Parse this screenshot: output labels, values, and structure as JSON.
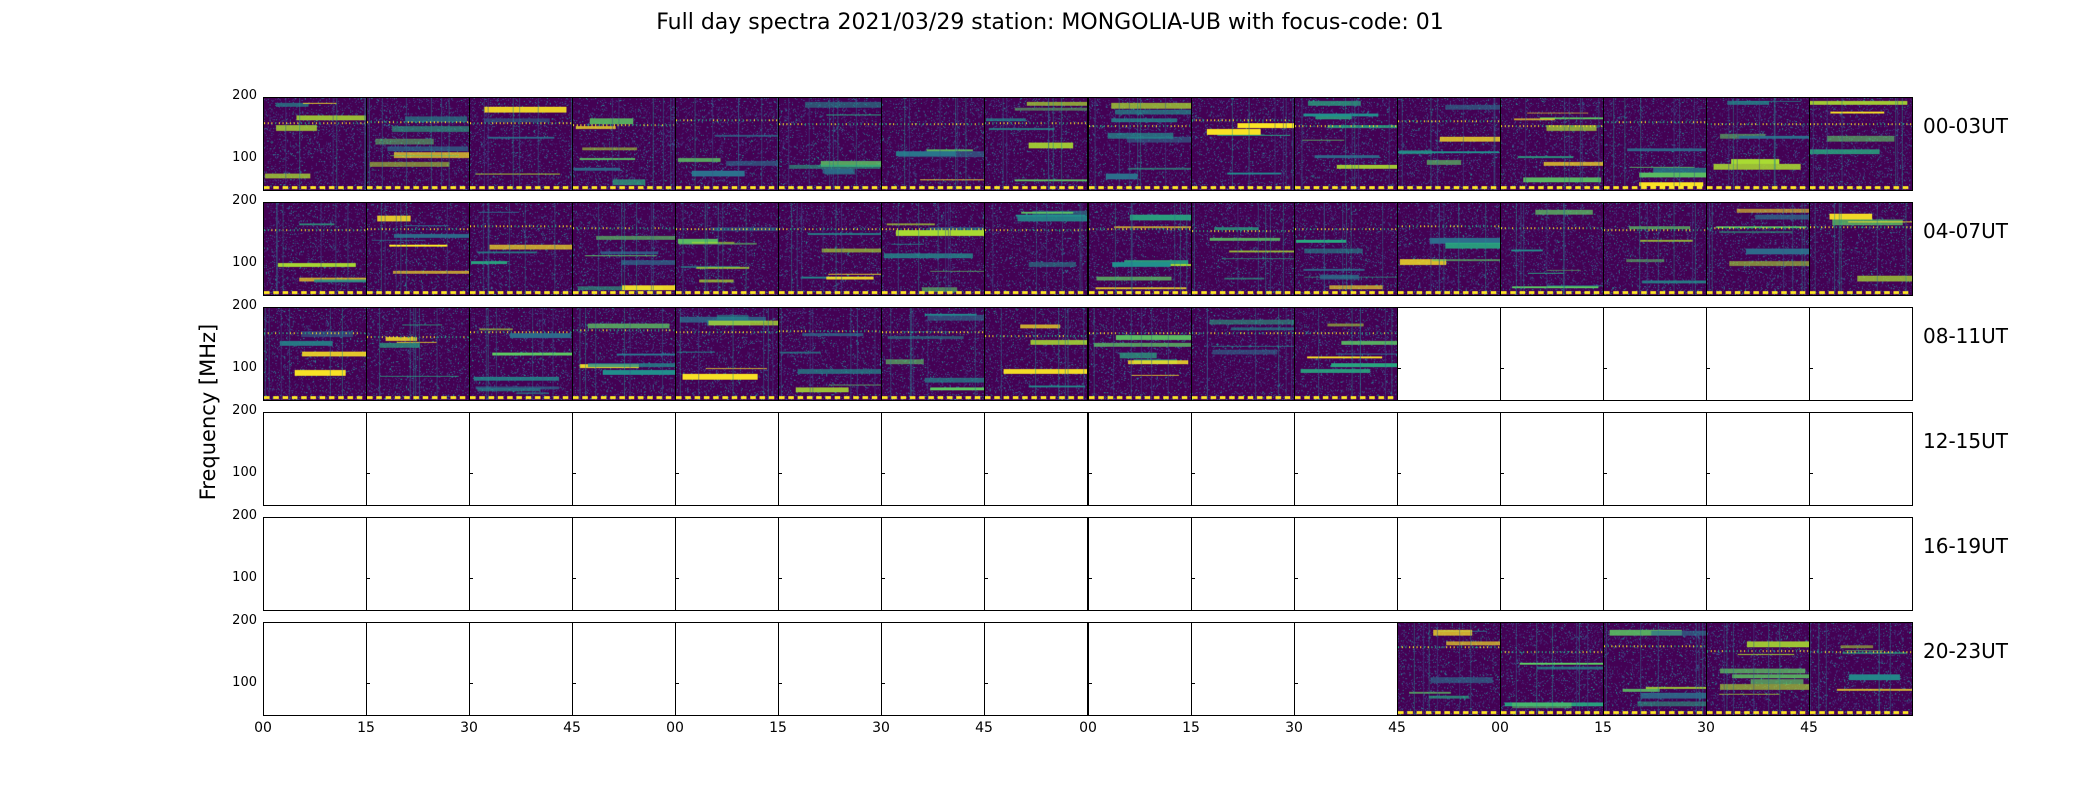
{
  "chart_data": {
    "type": "heatmap",
    "title": "Full day spectra 2021/03/29 station: MONGOLIA-UB with focus-code: 01",
    "ylabel": "Frequency [MHz]",
    "xlabel": "",
    "y_ticks": [
      "200",
      "100"
    ],
    "ylim": [
      45,
      200
    ],
    "colormap": "viridis",
    "colors": {
      "low": "#440154",
      "mid": "#21918c",
      "high": "#fde725"
    },
    "x_ticks": [
      "00",
      "15",
      "30",
      "45",
      "00",
      "15",
      "30",
      "45",
      "00",
      "15",
      "30",
      "45",
      "00",
      "15",
      "30",
      "45"
    ],
    "panels_per_row": 16,
    "rows": [
      {
        "label": "00-03UT",
        "has_data": [
          1,
          1,
          1,
          1,
          1,
          1,
          1,
          1,
          1,
          1,
          1,
          1,
          1,
          1,
          1,
          1
        ]
      },
      {
        "label": "04-07UT",
        "has_data": [
          1,
          1,
          1,
          1,
          1,
          1,
          1,
          1,
          1,
          1,
          1,
          1,
          1,
          1,
          1,
          1
        ]
      },
      {
        "label": "08-11UT",
        "has_data": [
          1,
          1,
          1,
          1,
          1,
          1,
          1,
          1,
          1,
          1,
          1,
          0,
          0,
          0,
          0,
          0
        ]
      },
      {
        "label": "12-15UT",
        "has_data": [
          0,
          0,
          0,
          0,
          0,
          0,
          0,
          0,
          0,
          0,
          0,
          0,
          0,
          0,
          0,
          0
        ]
      },
      {
        "label": "16-19UT",
        "has_data": [
          0,
          0,
          0,
          0,
          0,
          0,
          0,
          0,
          0,
          0,
          0,
          0,
          0,
          0,
          0,
          0
        ]
      },
      {
        "label": "20-23UT",
        "has_data": [
          0,
          0,
          0,
          0,
          0,
          0,
          0,
          0,
          0,
          0,
          0,
          1,
          1,
          1,
          1,
          1
        ]
      }
    ]
  }
}
